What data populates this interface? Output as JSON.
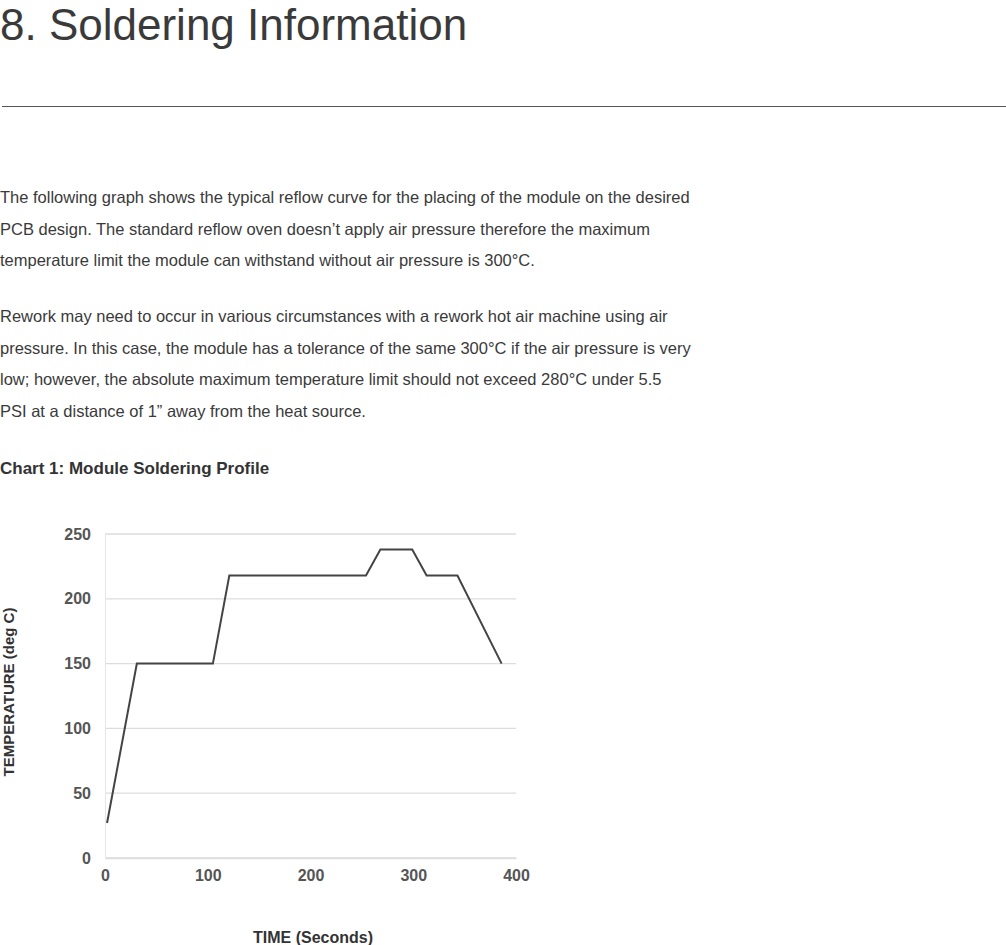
{
  "heading": "8. Soldering Information",
  "paragraphs": [
    [
      "The following graph shows the typical reflow curve for the placing of the module on the desired",
      "PCB design. The standard reflow oven doesn’t apply air pressure therefore the maximum",
      "temperature limit the module can withstand without air pressure is 300°C."
    ],
    [
      "Rework may need to occur in various circumstances with a rework hot air machine using air",
      "pressure.  In this case, the module has a tolerance of the same 300°C if the air pressure is very",
      "low; however, the absolute maximum temperature limit should not exceed 280°C under 5.5",
      "PSI at a distance of 1” away from the heat source."
    ]
  ],
  "chart_data": {
    "type": "line",
    "title": "Chart 1: Module Soldering Profile",
    "x_label": "TIME (Seconds)",
    "y_label": "TEMPERATURE (deg C)",
    "x": [
      2,
      31,
      105,
      121,
      254,
      268,
      299,
      313,
      343,
      386
    ],
    "values": [
      27,
      150,
      150,
      218,
      218,
      238,
      238,
      218,
      218,
      150
    ],
    "color": "#444444",
    "xlim": [
      0,
      400
    ],
    "xticks": [
      0,
      100,
      200,
      300,
      400
    ],
    "ylim": [
      0,
      250
    ],
    "yticks": [
      0,
      50,
      100,
      150,
      200,
      250
    ],
    "grid": true
  }
}
